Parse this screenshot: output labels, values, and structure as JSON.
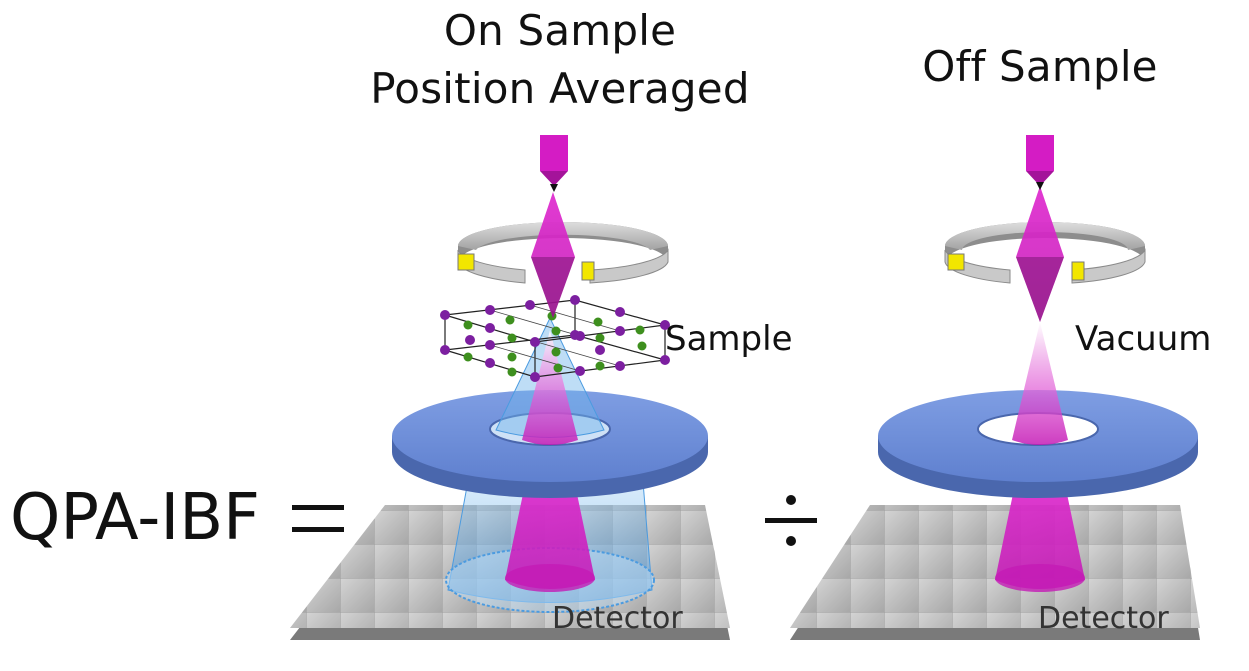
{
  "titles": {
    "left_line1": "On Sample",
    "left_line2": "Position Averaged",
    "right": "Off Sample"
  },
  "labels": {
    "sample": "Sample",
    "vacuum": "Vacuum",
    "detector_left": "Detector",
    "detector_right": "Detector"
  },
  "equation": {
    "lhs": "QPA-IBF",
    "equals": "=",
    "divide": "÷"
  },
  "colors": {
    "beam": "#d41cc4",
    "lens_ring": "#b9b9b9",
    "lens_pole": "#f2e600",
    "annular_detector": "#6f8fd9",
    "detector_plate": "#a9a9a9",
    "atom_purple": "#7c1fa0",
    "atom_green": "#3e8f1e",
    "scatter_cone": "#5aa8e6"
  }
}
